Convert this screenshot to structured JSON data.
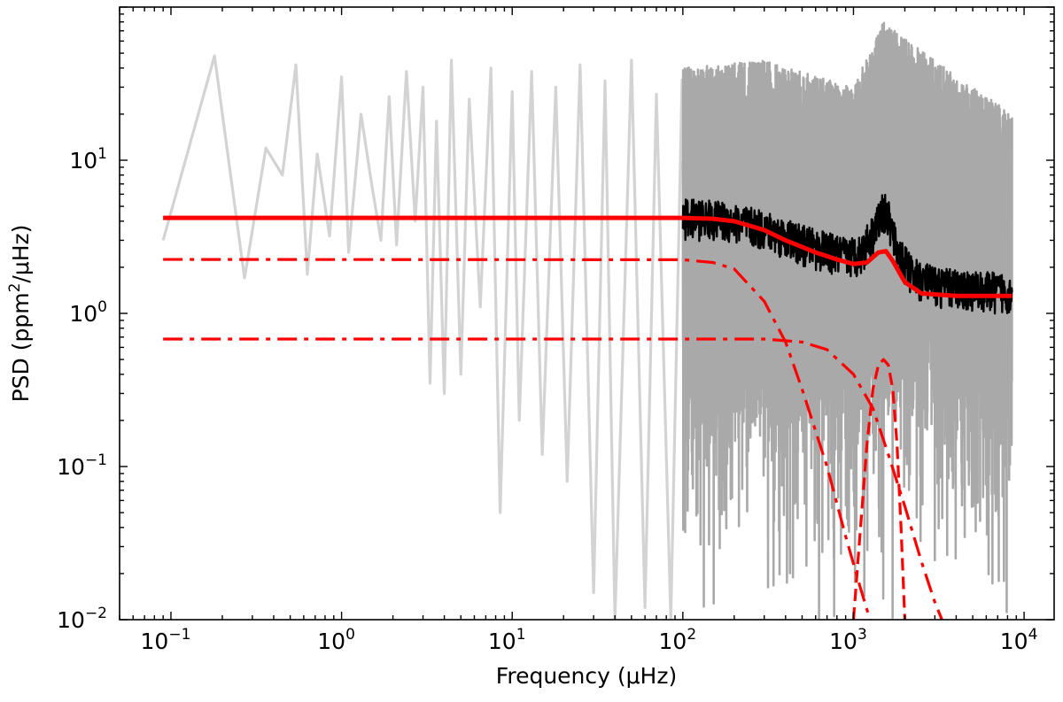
{
  "chart_data": {
    "type": "line",
    "xlabel": "Frequency (μHz)",
    "ylabel": "PSD (ppm²/μHz)",
    "xscale": "log",
    "yscale": "log",
    "xlim": [
      0.05,
      15000
    ],
    "ylim": [
      0.01,
      100
    ],
    "grid": false,
    "x_ticks": [
      {
        "value": 0.1,
        "base": "10",
        "exp": "−1"
      },
      {
        "value": 1,
        "base": "10",
        "exp": "0"
      },
      {
        "value": 10,
        "base": "10",
        "exp": "1"
      },
      {
        "value": 100,
        "base": "10",
        "exp": "2"
      },
      {
        "value": 1000,
        "base": "10",
        "exp": "3"
      },
      {
        "value": 10000,
        "base": "10",
        "exp": "4"
      }
    ],
    "y_ticks": [
      {
        "value": 0.01,
        "base": "10",
        "exp": "−2"
      },
      {
        "value": 0.1,
        "base": "10",
        "exp": "−1"
      },
      {
        "value": 1,
        "base": "10",
        "exp": "0"
      },
      {
        "value": 10,
        "base": "10",
        "exp": "1"
      }
    ],
    "colors": {
      "raw_low": "#d3d3d3",
      "raw_high": "#a9a9a9",
      "smoothed": "#000000",
      "model": "#ff0000"
    },
    "series": [
      {
        "role": "raw_power_spectrum_below_100uHz",
        "color": "#d3d3d3",
        "style": "solid",
        "x_range": [
          0.09,
          100
        ],
        "points": [
          [
            0.09,
            3.0
          ],
          [
            0.18,
            48
          ],
          [
            0.27,
            1.7
          ],
          [
            0.36,
            12
          ],
          [
            0.45,
            8
          ],
          [
            0.54,
            42
          ],
          [
            0.63,
            1.8
          ],
          [
            0.72,
            11
          ],
          [
            0.85,
            3.2
          ],
          [
            1.0,
            35
          ],
          [
            1.1,
            2.5
          ],
          [
            1.3,
            20
          ],
          [
            1.5,
            7
          ],
          [
            1.7,
            3.0
          ],
          [
            1.9,
            26
          ],
          [
            2.1,
            2.8
          ],
          [
            2.4,
            38
          ],
          [
            2.7,
            4
          ],
          [
            3.0,
            30
          ],
          [
            3.3,
            0.35
          ],
          [
            3.6,
            18
          ],
          [
            4.0,
            0.3
          ],
          [
            4.4,
            45
          ],
          [
            5.0,
            0.4
          ],
          [
            5.6,
            25
          ],
          [
            6.5,
            1.1
          ],
          [
            7.5,
            40
          ],
          [
            8.5,
            0.05
          ],
          [
            10,
            28
          ],
          [
            11,
            0.2
          ],
          [
            13,
            38
          ],
          [
            15,
            0.12
          ],
          [
            18,
            30
          ],
          [
            21,
            0.08
          ],
          [
            25,
            42
          ],
          [
            30,
            0.015
          ],
          [
            35,
            33
          ],
          [
            40,
            0.01
          ],
          [
            50,
            45
          ],
          [
            60,
            0.012
          ],
          [
            70,
            27
          ],
          [
            85,
            0.01
          ],
          [
            99,
            34
          ]
        ]
      },
      {
        "role": "raw_power_spectrum_above_100uHz",
        "color": "#a9a9a9",
        "style": "solid",
        "x_range": [
          100,
          8500
        ],
        "envelope_upper": [
          [
            100,
            40
          ],
          [
            300,
            45
          ],
          [
            1000,
            30
          ],
          [
            1500,
            80
          ],
          [
            3000,
            45
          ],
          [
            8500,
            20
          ]
        ],
        "envelope_lower": [
          [
            100,
            0.01
          ],
          [
            8500,
            0.01
          ]
        ]
      },
      {
        "role": "smoothed_power_spectrum",
        "color": "#000000",
        "style": "solid",
        "points": [
          [
            100,
            4.3
          ],
          [
            150,
            4.2
          ],
          [
            200,
            4.0
          ],
          [
            300,
            3.6
          ],
          [
            400,
            3.2
          ],
          [
            500,
            2.9
          ],
          [
            700,
            2.6
          ],
          [
            900,
            2.4
          ],
          [
            1100,
            2.5
          ],
          [
            1300,
            3.4
          ],
          [
            1500,
            4.8
          ],
          [
            1600,
            4.2
          ],
          [
            1800,
            2.6
          ],
          [
            2200,
            1.8
          ],
          [
            3000,
            1.55
          ],
          [
            5000,
            1.45
          ],
          [
            8500,
            1.4
          ]
        ]
      },
      {
        "role": "total_model_fit",
        "color": "#ff0000",
        "style": "solid",
        "points": [
          [
            0.09,
            4.2
          ],
          [
            100,
            4.2
          ],
          [
            150,
            4.15
          ],
          [
            200,
            4.0
          ],
          [
            300,
            3.5
          ],
          [
            400,
            3.0
          ],
          [
            600,
            2.5
          ],
          [
            800,
            2.25
          ],
          [
            1000,
            2.1
          ],
          [
            1200,
            2.15
          ],
          [
            1400,
            2.5
          ],
          [
            1550,
            2.55
          ],
          [
            1700,
            2.2
          ],
          [
            2000,
            1.6
          ],
          [
            2500,
            1.35
          ],
          [
            4000,
            1.3
          ],
          [
            8500,
            1.3
          ]
        ]
      },
      {
        "role": "granulation_component_1",
        "color": "#ff0000",
        "style": "dashdot",
        "points": [
          [
            0.09,
            2.25
          ],
          [
            100,
            2.24
          ],
          [
            150,
            2.15
          ],
          [
            200,
            1.95
          ],
          [
            300,
            1.2
          ],
          [
            400,
            0.65
          ],
          [
            500,
            0.32
          ],
          [
            700,
            0.1
          ],
          [
            900,
            0.035
          ],
          [
            1100,
            0.016
          ],
          [
            1250,
            0.01
          ]
        ]
      },
      {
        "role": "granulation_component_2",
        "color": "#ff0000",
        "style": "dashdot",
        "points": [
          [
            0.09,
            0.68
          ],
          [
            300,
            0.68
          ],
          [
            500,
            0.65
          ],
          [
            700,
            0.58
          ],
          [
            1000,
            0.4
          ],
          [
            1300,
            0.24
          ],
          [
            1600,
            0.12
          ],
          [
            2000,
            0.055
          ],
          [
            2500,
            0.024
          ],
          [
            3000,
            0.013
          ],
          [
            3300,
            0.01
          ]
        ]
      },
      {
        "role": "oscillation_gaussian_envelope",
        "color": "#ff0000",
        "style": "dashed",
        "points": [
          [
            1000,
            0.01
          ],
          [
            1100,
            0.04
          ],
          [
            1200,
            0.14
          ],
          [
            1300,
            0.32
          ],
          [
            1400,
            0.46
          ],
          [
            1500,
            0.5
          ],
          [
            1600,
            0.46
          ],
          [
            1700,
            0.32
          ],
          [
            1800,
            0.14
          ],
          [
            1900,
            0.04
          ],
          [
            2000,
            0.01
          ]
        ]
      }
    ]
  }
}
